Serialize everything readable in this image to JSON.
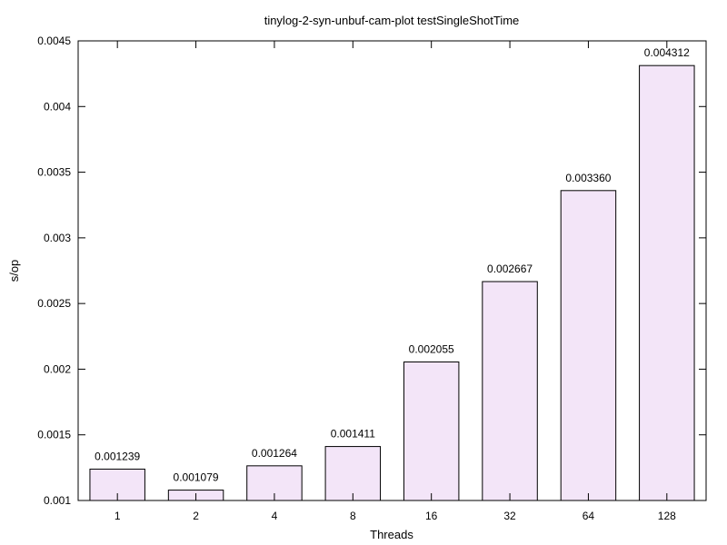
{
  "chart_data": {
    "type": "bar",
    "title": "tinylog-2-syn-unbuf-cam-plot testSingleShotTime",
    "xlabel": "Threads",
    "ylabel": "s/op",
    "categories": [
      "1",
      "2",
      "4",
      "8",
      "16",
      "32",
      "64",
      "128"
    ],
    "values": [
      0.001239,
      0.001079,
      0.001264,
      0.001411,
      0.002055,
      0.002667,
      0.00336,
      0.004312
    ],
    "value_labels": [
      "0.001239",
      "0.001079",
      "0.001264",
      "0.001411",
      "0.002055",
      "0.002667",
      "0.003360",
      "0.004312"
    ],
    "ylim": [
      0.001,
      0.0045
    ],
    "yticks": [
      0.001,
      0.0015,
      0.002,
      0.0025,
      0.003,
      0.0035,
      0.004,
      0.0045
    ],
    "ytick_labels": [
      "0.001",
      "0.0015",
      "0.002",
      "0.0025",
      "0.003",
      "0.0035",
      "0.004",
      "0.0045"
    ],
    "grid": false,
    "legend": "none",
    "bar_fill": "#f3e5f8",
    "bar_stroke": "#000000"
  }
}
